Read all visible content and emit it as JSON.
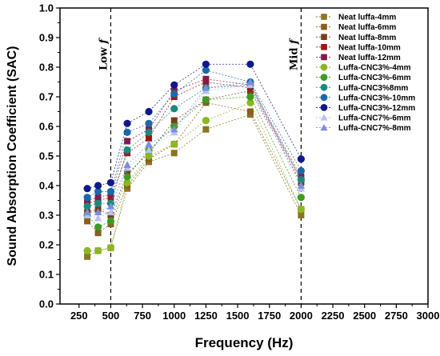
{
  "chart_data": {
    "type": "scatter",
    "xlabel": "Frequency (Hz)",
    "ylabel": "Sound Absorption Coefficient (SAC)",
    "xlim": [
      100,
      3000
    ],
    "ylim": [
      0.0,
      1.0
    ],
    "xticks": [
      250,
      500,
      750,
      1000,
      1250,
      1500,
      1750,
      2000,
      2250,
      2500,
      2750,
      3000
    ],
    "yticks": [
      0.0,
      0.1,
      0.2,
      0.3,
      0.4,
      0.5,
      0.6,
      0.7,
      0.8,
      0.9,
      1.0
    ],
    "legend_position": "top-right",
    "grid": false,
    "x": [
      315,
      400,
      500,
      630,
      800,
      1000,
      1250,
      1600,
      2000
    ],
    "vlines": [
      {
        "x": 500,
        "label": "Low f"
      },
      {
        "x": 2000,
        "label": "Mid f"
      }
    ],
    "series": [
      {
        "name": "Neat luffa-4mm",
        "marker": "square",
        "color": "#8a7420",
        "values": [
          0.16,
          0.18,
          0.19,
          0.39,
          0.48,
          0.51,
          0.59,
          0.64,
          0.3
        ]
      },
      {
        "name": "Neat luffa-6mm",
        "marker": "square",
        "color": "#8a5e1e",
        "values": [
          0.28,
          0.24,
          0.27,
          0.4,
          0.49,
          0.54,
          0.68,
          0.65,
          0.32
        ]
      },
      {
        "name": "Neat luffa-8mm",
        "marker": "square",
        "color": "#7a3b1c",
        "values": [
          0.31,
          0.32,
          0.3,
          0.44,
          0.51,
          0.62,
          0.69,
          0.72,
          0.41
        ]
      },
      {
        "name": "Neat luffa-10mm",
        "marker": "square",
        "color": "#a01414",
        "values": [
          0.34,
          0.35,
          0.36,
          0.51,
          0.56,
          0.7,
          0.75,
          0.73,
          0.42
        ]
      },
      {
        "name": "Neat luffa-12mm",
        "marker": "square",
        "color": "#801c4c",
        "values": [
          0.35,
          0.36,
          0.37,
          0.55,
          0.59,
          0.72,
          0.76,
          0.74,
          0.43
        ]
      },
      {
        "name": "Luffa-CNC3%-4mm",
        "marker": "circle",
        "color": "#8ab822",
        "values": [
          0.18,
          0.18,
          0.19,
          0.41,
          0.5,
          0.54,
          0.62,
          0.68,
          0.32
        ]
      },
      {
        "name": "Luffa-CNC3%-6mm",
        "marker": "circle",
        "color": "#3c9c22",
        "values": [
          0.3,
          0.26,
          0.28,
          0.43,
          0.52,
          0.6,
          0.69,
          0.7,
          0.36
        ]
      },
      {
        "name": "Luffa-CNC3%8mm",
        "marker": "circle",
        "color": "#1a8a7c",
        "values": [
          0.33,
          0.34,
          0.34,
          0.52,
          0.58,
          0.66,
          0.73,
          0.74,
          0.42
        ]
      },
      {
        "name": "Luffa-CNC3%-10mm",
        "marker": "circle",
        "color": "#1a6aaa",
        "values": [
          0.36,
          0.38,
          0.38,
          0.58,
          0.61,
          0.71,
          0.79,
          0.75,
          0.45
        ]
      },
      {
        "name": "Luffa-CNC3%-12mm",
        "marker": "circle",
        "color": "#10188e",
        "values": [
          0.39,
          0.4,
          0.41,
          0.61,
          0.65,
          0.74,
          0.81,
          0.81,
          0.49
        ]
      },
      {
        "name": "Luffa-CNC7%-6mm",
        "marker": "triangle",
        "color": "#b8c2ee",
        "values": [
          0.3,
          0.29,
          0.31,
          0.46,
          0.52,
          0.58,
          0.72,
          0.74,
          0.39
        ]
      },
      {
        "name": "Luffa-CNC7%-8mm",
        "marker": "triangle",
        "color": "#7c8ee0",
        "values": [
          0.31,
          0.31,
          0.33,
          0.47,
          0.54,
          0.59,
          0.73,
          0.75,
          0.4
        ]
      }
    ]
  }
}
